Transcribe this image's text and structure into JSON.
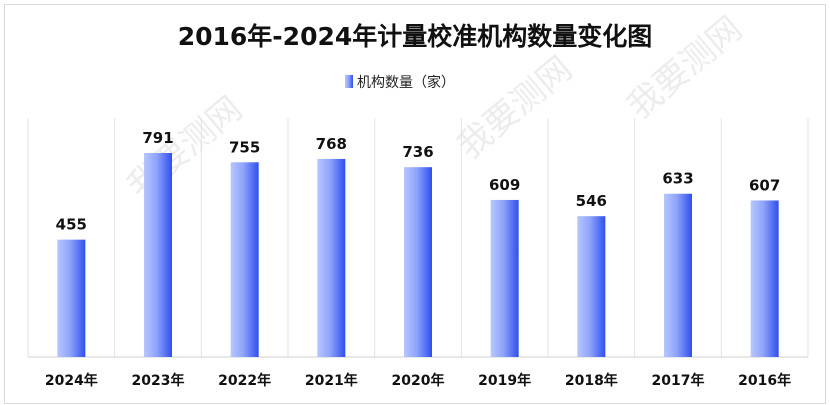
{
  "chart_data": {
    "type": "bar",
    "title": "2016年-2024年计量校准机构数量变化图",
    "categories": [
      "2024年",
      "2023年",
      "2022年",
      "2021年",
      "2020年",
      "2019年",
      "2018年",
      "2017年",
      "2016年"
    ],
    "series": [
      {
        "name": "机构数量（家）",
        "values": [
          455,
          791,
          755,
          768,
          736,
          609,
          546,
          633,
          607
        ]
      }
    ],
    "ylim": [
      0,
      920
    ],
    "grid": "vertical category separators",
    "legend": "top-center",
    "colors": {
      "bar": "#3b5bf0",
      "bar_light": "#b7c6ff"
    },
    "data_labels": true
  },
  "watermark": "我要测网"
}
